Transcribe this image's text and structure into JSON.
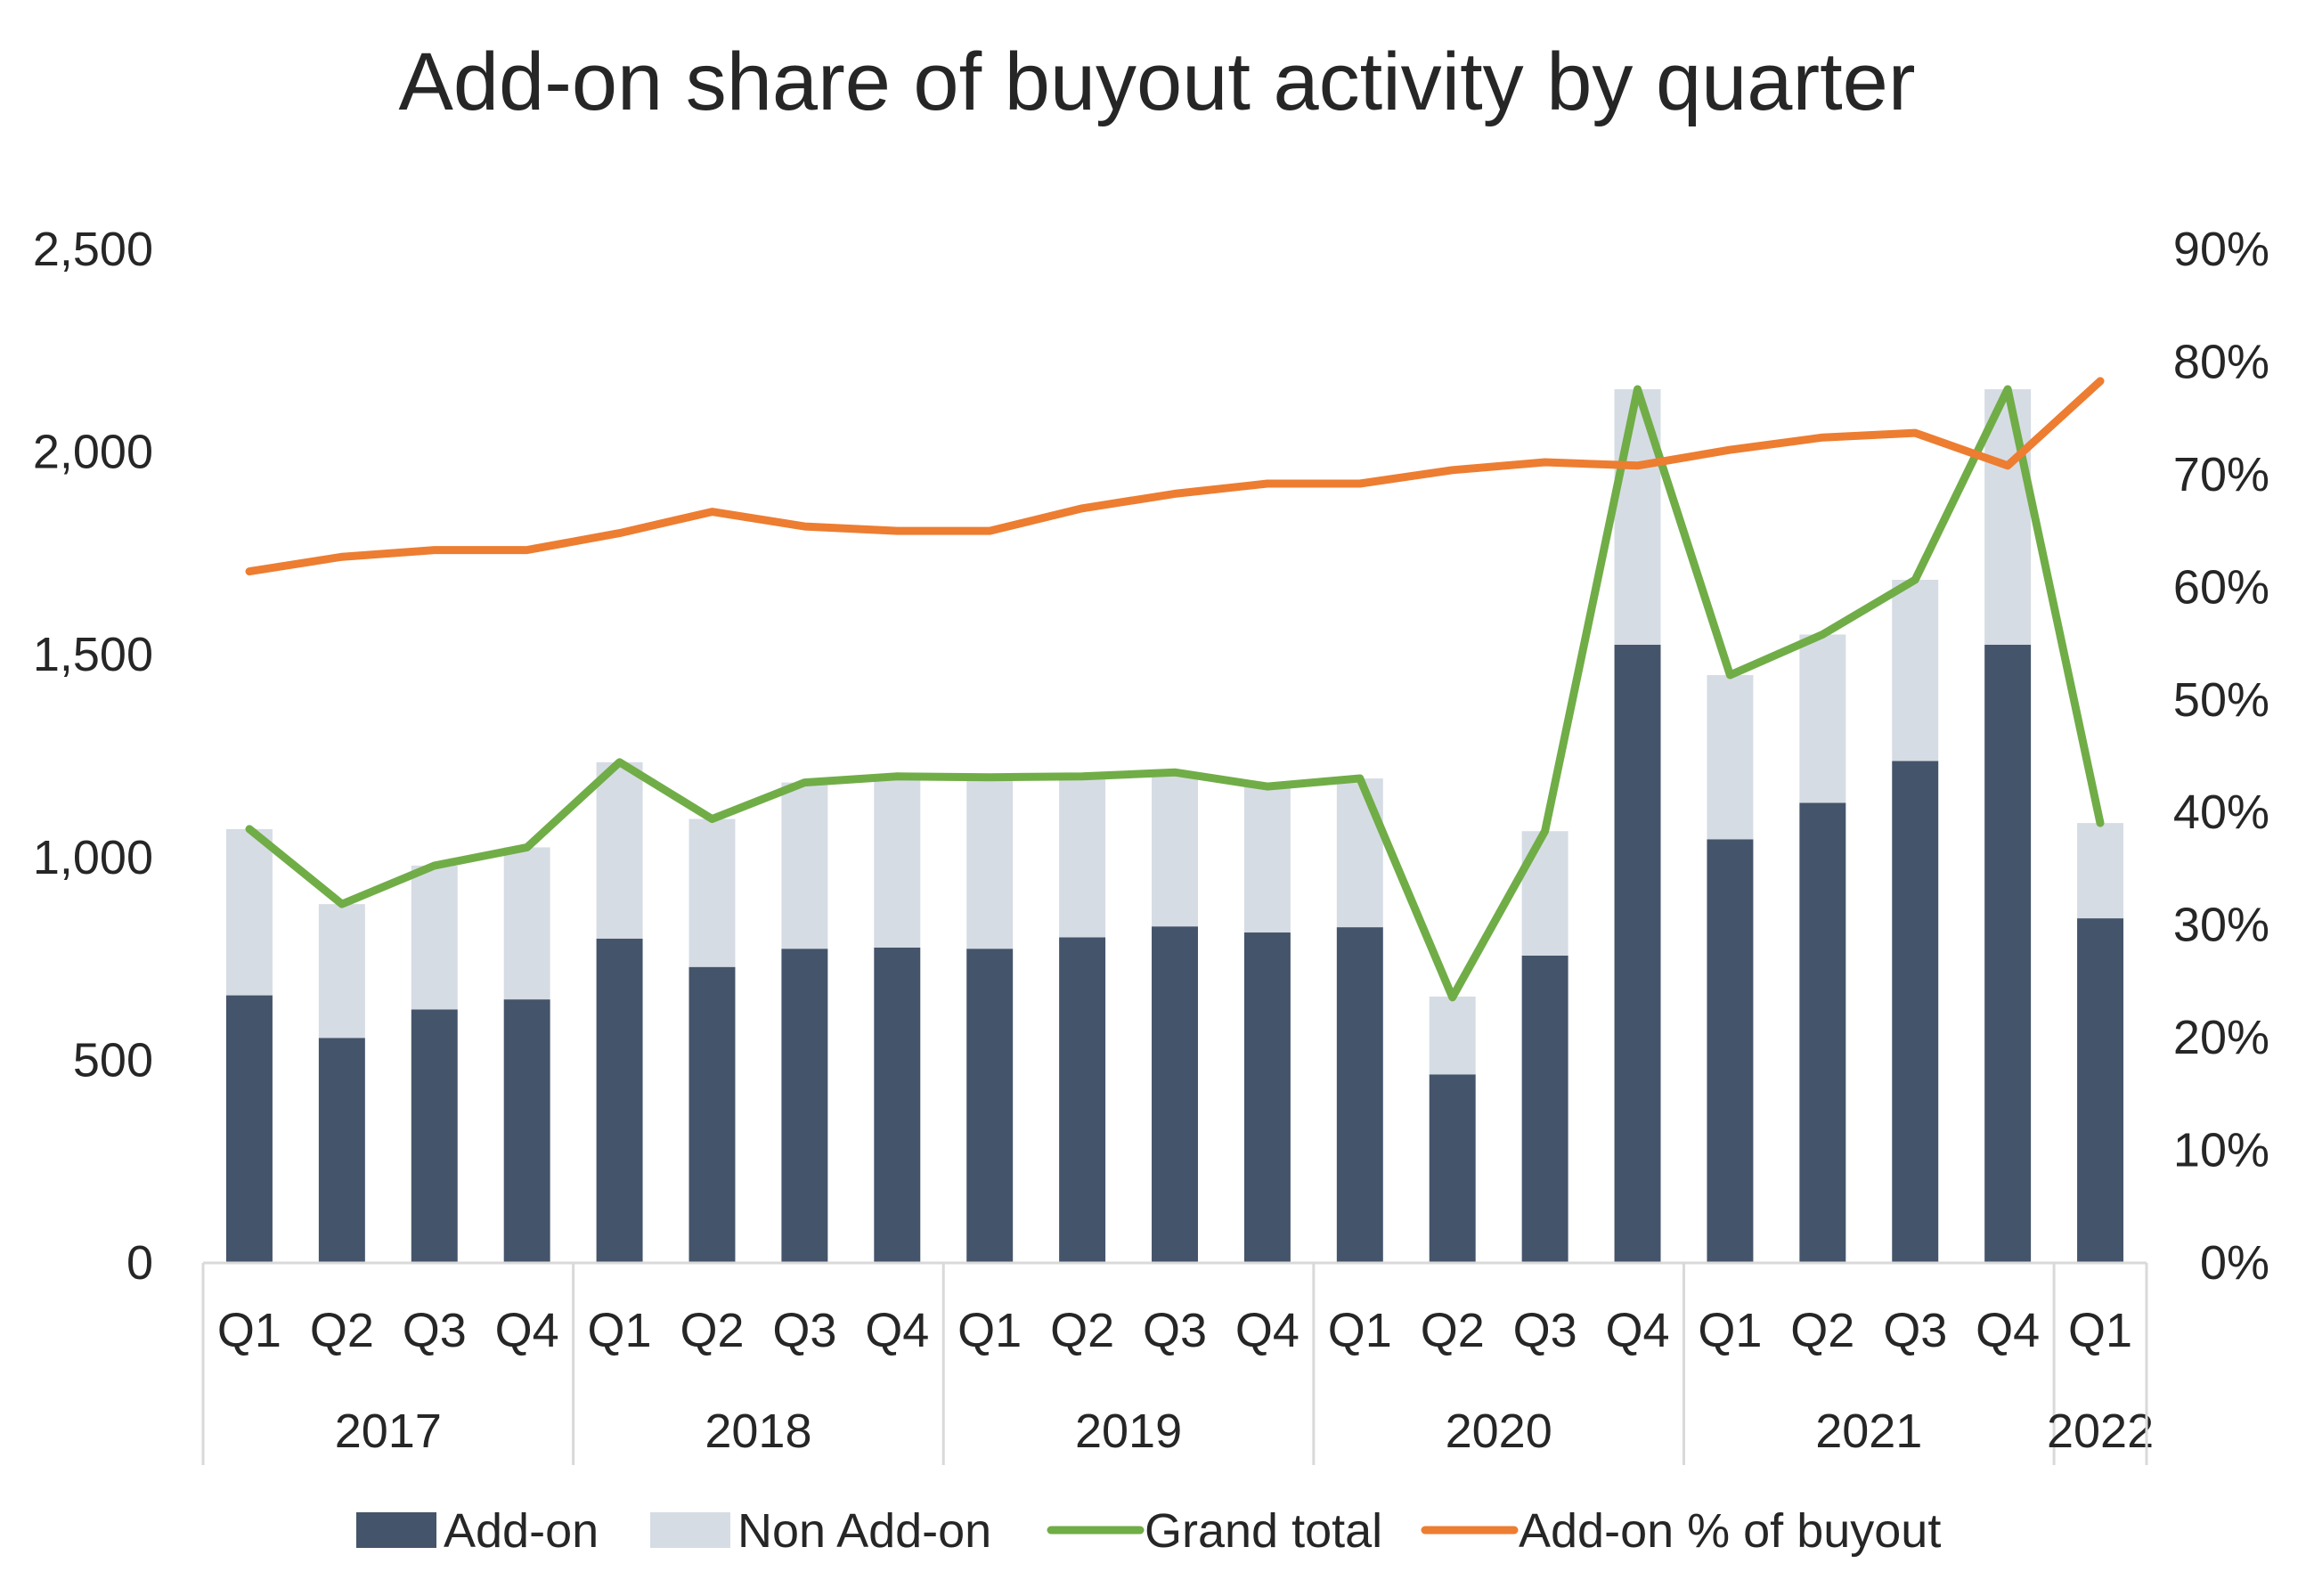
{
  "chart_data": {
    "type": "bar",
    "title": "Add-on share of buyout activity by quarter",
    "xlabel": "",
    "ylabel": "",
    "y2label": "",
    "ylim": [
      0,
      2500
    ],
    "y_ticks": [
      "0",
      "500",
      "1,000",
      "1,500",
      "2,000",
      "2,500"
    ],
    "y2lim": [
      0,
      0.9
    ],
    "y2_ticks": [
      "0%",
      "10%",
      "20%",
      "30%",
      "40%",
      "50%",
      "60%",
      "70%",
      "80%",
      "90%"
    ],
    "categories": [
      "Q1",
      "Q2",
      "Q3",
      "Q4",
      "Q1",
      "Q2",
      "Q3",
      "Q4",
      "Q1",
      "Q2",
      "Q3",
      "Q4",
      "Q1",
      "Q2",
      "Q3",
      "Q4",
      "Q1",
      "Q2",
      "Q3",
      "Q4",
      "Q1"
    ],
    "years": [
      {
        "label": "2017",
        "count": 4
      },
      {
        "label": "2018",
        "count": 4
      },
      {
        "label": "2019",
        "count": 4
      },
      {
        "label": "2020",
        "count": 4
      },
      {
        "label": "2021",
        "count": 4
      },
      {
        "label": "2022",
        "count": 1
      }
    ],
    "series": [
      {
        "name": "Add-on",
        "kind": "bar",
        "stack": "total",
        "color": "#44546a",
        "values": [
          660,
          555,
          625,
          650,
          800,
          730,
          775,
          778,
          775,
          803,
          830,
          815,
          828,
          465,
          758,
          1525,
          1045,
          1135,
          1238,
          1525,
          850
        ]
      },
      {
        "name": "Non Add-on",
        "kind": "bar",
        "stack": "total",
        "color": "#d6dce4",
        "values": [
          410,
          330,
          355,
          375,
          435,
          365,
          410,
          422,
          425,
          397,
          380,
          360,
          367,
          192,
          307,
          630,
          405,
          415,
          447,
          630,
          235
        ]
      },
      {
        "name": "Grand total",
        "kind": "line",
        "axis": "y",
        "color": "#70ad47",
        "values": [
          1070,
          885,
          980,
          1025,
          1235,
          1095,
          1185,
          1200,
          1198,
          1200,
          1210,
          1175,
          1195,
          655,
          1065,
          2155,
          1450,
          1550,
          1685,
          2155,
          1085
        ]
      },
      {
        "name": "Add-on % of buyout",
        "kind": "line",
        "axis": "y2",
        "color": "#ed7d31",
        "values": [
          0.614,
          0.627,
          0.633,
          0.633,
          0.648,
          0.667,
          0.654,
          0.65,
          0.65,
          0.67,
          0.683,
          0.692,
          0.692,
          0.704,
          0.711,
          0.708,
          0.722,
          0.733,
          0.737,
          0.708,
          0.783
        ]
      }
    ],
    "legend_position": "bottom",
    "grid": false
  }
}
